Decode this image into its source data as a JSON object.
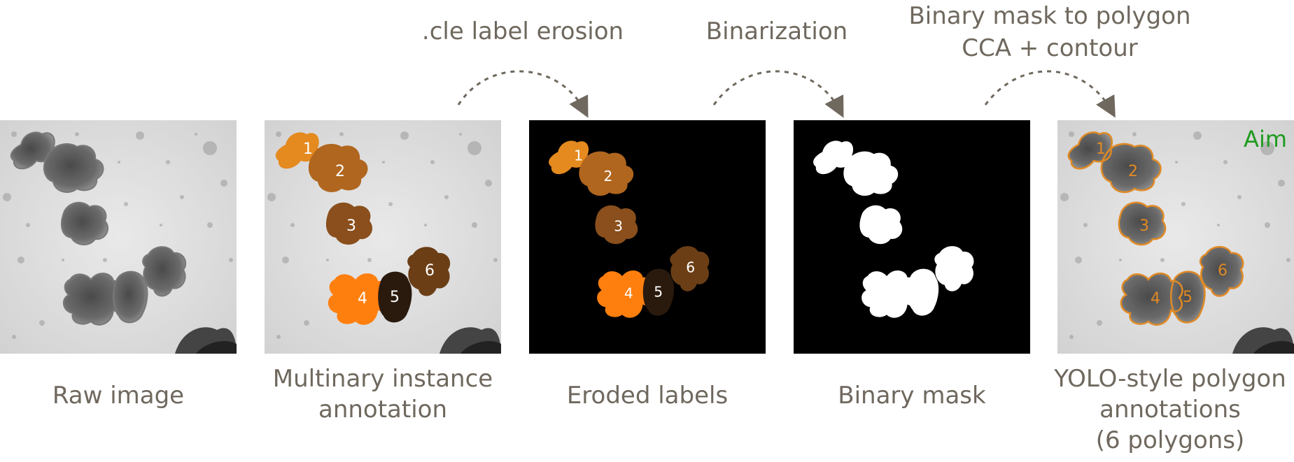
{
  "steps": [
    {
      "lines": [
        ".cle label erosion"
      ]
    },
    {
      "lines": [
        "Binarization"
      ]
    },
    {
      "lines": [
        "Binary mask to polygon",
        "CCA + contour"
      ]
    }
  ],
  "panels": [
    {
      "caption": [
        "Raw image"
      ]
    },
    {
      "caption": [
        "Multinary instance",
        "annotation"
      ]
    },
    {
      "caption": [
        "Eroded labels"
      ]
    },
    {
      "caption": [
        "Binary mask"
      ]
    },
    {
      "caption": [
        "YOLO-style polygon",
        "annotations",
        "(6 polygons)"
      ]
    }
  ],
  "aim_label": "Aim",
  "instance_labels": [
    "1",
    "2",
    "3",
    "4",
    "5",
    "6"
  ],
  "colors": {
    "text": "#6f685e",
    "instance_1": "#e58a1f",
    "instance_2": "#b0661e",
    "instance_3": "#8a4f1c",
    "instance_4": "#ff7f0e",
    "instance_5": "#2a1a0e",
    "instance_6": "#6b3e16",
    "polygon_outline": "#e08a25",
    "aim": "#1f9b1f"
  }
}
